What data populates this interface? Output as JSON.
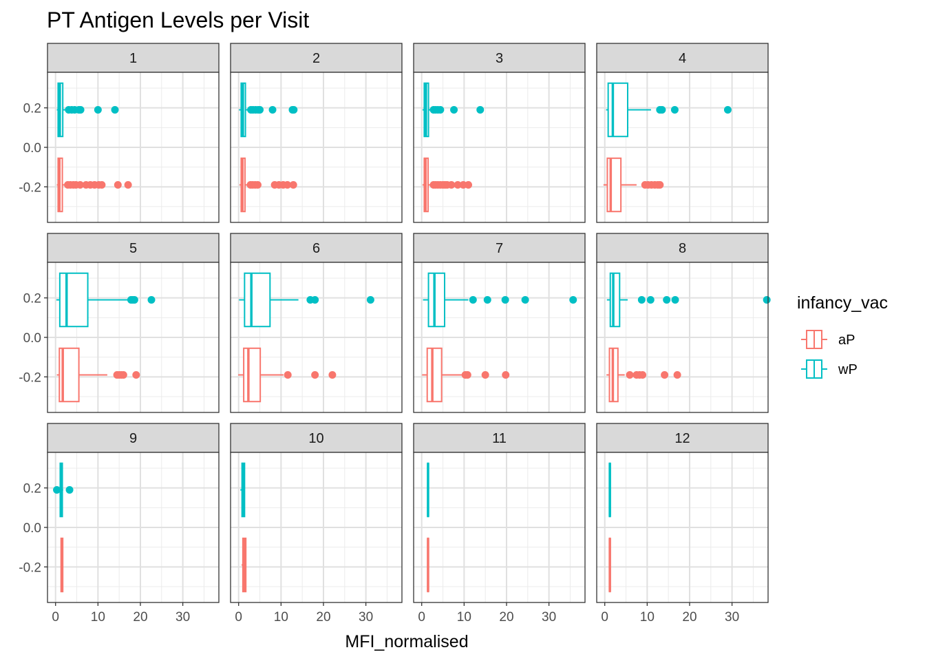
{
  "chart_data": {
    "type": "boxplot",
    "title": "PT Antigen Levels per Visit",
    "xlabel": "MFI_normalised",
    "ylabel": "",
    "xlim": [
      -1.9,
      38.5
    ],
    "ylim": [
      -0.38,
      0.38
    ],
    "x_ticks": [
      0,
      10,
      20,
      30
    ],
    "y_ticks": [
      0.2,
      0.0,
      -0.2
    ],
    "y_tick_labels": [
      "0.2",
      "0.0",
      "-0.2"
    ],
    "grid": true,
    "legend": {
      "title": "infancy_vac",
      "position": "right",
      "entries": [
        {
          "label": "aP",
          "color": "#F8766D"
        },
        {
          "label": "wP",
          "color": "#00BFC4"
        }
      ]
    },
    "groups": [
      {
        "name": "aP",
        "y": -0.19,
        "color": "#F8766D"
      },
      {
        "name": "wP",
        "y": 0.19,
        "color": "#00BFC4"
      }
    ],
    "facets": [
      {
        "label": "1",
        "aP": {
          "lower_whisker": 0.3,
          "q1": 0.6,
          "median": 0.9,
          "q3": 1.6,
          "upper_whisker": 2.5,
          "outliers": [
            2.9,
            3.5,
            4.2,
            4.8,
            5.8,
            7.2,
            8.2,
            9.2,
            10.2,
            10.9,
            14.7,
            17.1
          ]
        },
        "wP": {
          "lower_whisker": 0.3,
          "q1": 0.6,
          "median": 1.0,
          "q3": 1.7,
          "upper_whisker": 2.6,
          "outliers": [
            3.1,
            3.8,
            4.5,
            5.5,
            5.9,
            10.0,
            14.0
          ]
        }
      },
      {
        "label": "2",
        "aP": {
          "lower_whisker": 0.2,
          "q1": 0.6,
          "median": 0.9,
          "q3": 1.5,
          "upper_whisker": 2.4,
          "outliers": [
            2.8,
            3.3,
            3.9,
            4.5,
            8.5,
            9.5,
            10.5,
            11.5,
            12.9
          ]
        },
        "wP": {
          "lower_whisker": 0.1,
          "q1": 0.6,
          "median": 1.0,
          "q3": 1.6,
          "upper_whisker": 2.5,
          "outliers": [
            2.9,
            3.4,
            4.0,
            4.6,
            5.0,
            8.0,
            12.7,
            13.0
          ]
        }
      },
      {
        "label": "3",
        "aP": {
          "lower_whisker": 0.2,
          "q1": 0.6,
          "median": 0.9,
          "q3": 1.5,
          "upper_whisker": 2.4,
          "outliers": [
            2.8,
            3.3,
            3.8,
            4.4,
            5.0,
            5.5,
            6.0,
            7.0,
            8.5,
            9.8,
            11.0
          ]
        },
        "wP": {
          "lower_whisker": 0.2,
          "q1": 0.6,
          "median": 1.0,
          "q3": 1.6,
          "upper_whisker": 2.5,
          "outliers": [
            2.8,
            3.3,
            3.8,
            4.4,
            7.6,
            13.8
          ]
        }
      },
      {
        "label": "4",
        "aP": {
          "lower_whisker": -0.3,
          "q1": 0.6,
          "median": 1.4,
          "q3": 3.8,
          "upper_whisker": 7.5,
          "outliers": [
            9.5,
            10.2,
            11.0,
            11.8,
            12.5,
            13.0
          ]
        },
        "wP": {
          "lower_whisker": 0.3,
          "q1": 0.8,
          "median": 1.9,
          "q3": 5.4,
          "upper_whisker": 10.9,
          "outliers": [
            13.0,
            13.5,
            16.5,
            29.0
          ]
        }
      },
      {
        "label": "5",
        "aP": {
          "lower_whisker": 0.3,
          "q1": 0.9,
          "median": 1.7,
          "q3": 5.5,
          "upper_whisker": 12.2,
          "outliers": [
            14.5,
            15.0,
            15.5,
            16.0,
            19.0
          ]
        },
        "wP": {
          "lower_whisker": 0.2,
          "q1": 1.0,
          "median": 2.6,
          "q3": 7.6,
          "upper_whisker": 17.2,
          "outliers": [
            17.8,
            18.2,
            18.6,
            22.6
          ]
        }
      },
      {
        "label": "6",
        "aP": {
          "lower_whisker": -0.1,
          "q1": 1.2,
          "median": 2.3,
          "q3": 5.1,
          "upper_whisker": 10.6,
          "outliers": [
            11.6,
            18.0,
            22.1
          ]
        },
        "wP": {
          "lower_whisker": 0.1,
          "q1": 1.4,
          "median": 3.0,
          "q3": 7.4,
          "upper_whisker": 14.1,
          "outliers": [
            16.9,
            18.0,
            31.1
          ]
        }
      },
      {
        "label": "7",
        "aP": {
          "lower_whisker": 0.1,
          "q1": 1.3,
          "median": 2.5,
          "q3": 4.7,
          "upper_whisker": 9.6,
          "outliers": [
            10.3,
            10.8,
            15.0,
            19.8
          ]
        },
        "wP": {
          "lower_whisker": 0.3,
          "q1": 1.6,
          "median": 3.0,
          "q3": 5.4,
          "upper_whisker": 11.0,
          "outliers": [
            12.1,
            15.5,
            19.7,
            24.4,
            35.7
          ]
        }
      },
      {
        "label": "8",
        "aP": {
          "lower_whisker": 0.4,
          "q1": 1.1,
          "median": 1.9,
          "q3": 3.1,
          "upper_whisker": 4.7,
          "outliers": [
            5.9,
            7.5,
            8.2,
            8.9,
            14.1,
            17.1
          ]
        },
        "wP": {
          "lower_whisker": 0.5,
          "q1": 1.3,
          "median": 2.0,
          "q3": 3.5,
          "upper_whisker": 5.4,
          "outliers": [
            8.7,
            10.8,
            14.6,
            16.6,
            38.2
          ]
        }
      },
      {
        "label": "9",
        "aP": {
          "lower_whisker": 1.2,
          "q1": 1.3,
          "median": 1.5,
          "q3": 1.7,
          "upper_whisker": 1.8,
          "outliers": []
        },
        "wP": {
          "lower_whisker": 0.9,
          "q1": 1.1,
          "median": 1.3,
          "q3": 1.6,
          "upper_whisker": 1.8,
          "outliers": [
            0.3,
            3.3
          ]
        }
      },
      {
        "label": "10",
        "aP": {
          "lower_whisker": 0.7,
          "q1": 1.0,
          "median": 1.4,
          "q3": 1.7,
          "upper_whisker": 1.8,
          "outliers": []
        },
        "wP": {
          "lower_whisker": 0.4,
          "q1": 0.8,
          "median": 1.1,
          "q3": 1.4,
          "upper_whisker": 1.5,
          "outliers": []
        }
      },
      {
        "label": "11",
        "aP": {
          "lower_whisker": 1.4,
          "q1": 1.4,
          "median": 1.5,
          "q3": 1.6,
          "upper_whisker": 1.6,
          "outliers": []
        },
        "wP": {
          "lower_whisker": 1.3,
          "q1": 1.4,
          "median": 1.5,
          "q3": 1.6,
          "upper_whisker": 1.6,
          "outliers": []
        }
      },
      {
        "label": "12",
        "aP": {
          "lower_whisker": 1.1,
          "q1": 1.1,
          "median": 1.2,
          "q3": 1.3,
          "upper_whisker": 1.3,
          "outliers": []
        },
        "wP": {
          "lower_whisker": 1.1,
          "q1": 1.1,
          "median": 1.2,
          "q3": 1.3,
          "upper_whisker": 1.3,
          "outliers": []
        }
      }
    ]
  }
}
